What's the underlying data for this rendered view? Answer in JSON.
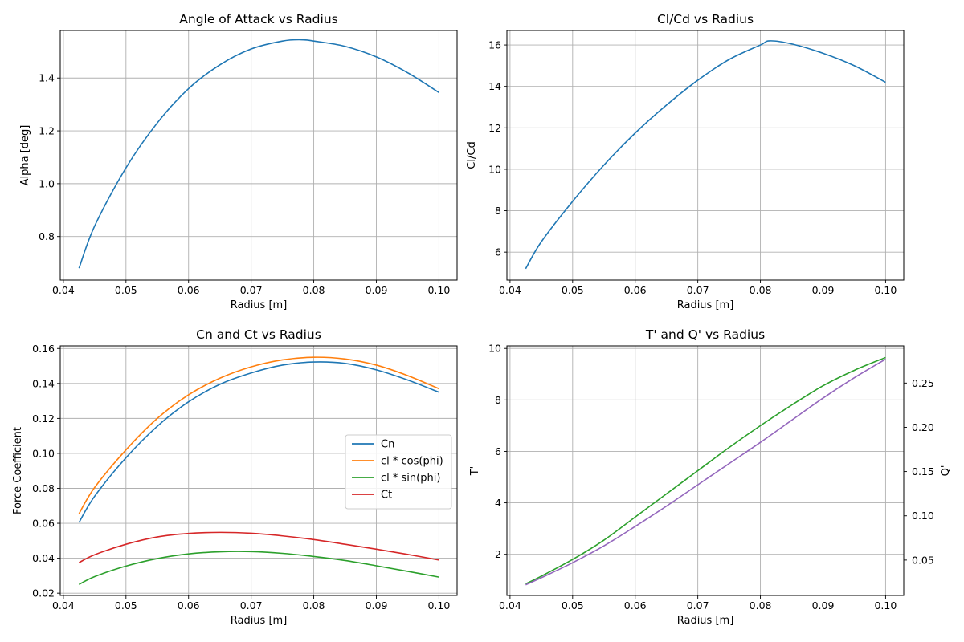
{
  "chart_data": [
    {
      "id": "alpha",
      "type": "line",
      "title": "Angle of Attack vs Radius",
      "xlabel": "Radius [m]",
      "ylabel": "Alpha [deg]",
      "xlim": [
        0.0395,
        0.1029
      ],
      "ylim": [
        0.635,
        1.58
      ],
      "xticks": [
        0.04,
        0.05,
        0.06,
        0.07,
        0.08,
        0.09,
        0.1
      ],
      "xtick_labels": [
        "0.04",
        "0.05",
        "0.06",
        "0.07",
        "0.08",
        "0.09",
        "0.10"
      ],
      "yticks": [
        0.8,
        1.0,
        1.2,
        1.4
      ],
      "ytick_labels": [
        "0.8",
        "1.0",
        "1.2",
        "1.4"
      ],
      "grid": true,
      "series": [
        {
          "color": "#1f77b4",
          "x": [
            0.0425,
            0.045,
            0.05,
            0.055,
            0.06,
            0.065,
            0.07,
            0.075,
            0.078,
            0.08,
            0.085,
            0.09,
            0.095,
            0.1
          ],
          "y": [
            0.68,
            0.84,
            1.06,
            1.23,
            1.36,
            1.45,
            1.51,
            1.54,
            1.545,
            1.54,
            1.52,
            1.48,
            1.42,
            1.345
          ]
        }
      ]
    },
    {
      "id": "clcd",
      "type": "line",
      "title": "Cl/Cd vs Radius",
      "xlabel": "Radius [m]",
      "ylabel": "Cl/Cd",
      "ylabel_color": "#1f77b4",
      "ytick_color": "#1f77b4",
      "xlim": [
        0.0395,
        0.1029
      ],
      "ylim": [
        4.65,
        16.7
      ],
      "xticks": [
        0.04,
        0.05,
        0.06,
        0.07,
        0.08,
        0.09,
        0.1
      ],
      "xtick_labels": [
        "0.04",
        "0.05",
        "0.06",
        "0.07",
        "0.08",
        "0.09",
        "0.10"
      ],
      "yticks": [
        6,
        8,
        10,
        12,
        14,
        16
      ],
      "ytick_labels": [
        "6",
        "8",
        "10",
        "12",
        "14",
        "16"
      ],
      "grid": true,
      "series": [
        {
          "color": "#1f77b4",
          "x": [
            0.0425,
            0.045,
            0.05,
            0.055,
            0.06,
            0.065,
            0.07,
            0.075,
            0.08,
            0.0815,
            0.085,
            0.09,
            0.095,
            0.1
          ],
          "y": [
            5.2,
            6.5,
            8.45,
            10.2,
            11.75,
            13.1,
            14.3,
            15.3,
            16.0,
            16.2,
            16.05,
            15.6,
            15.0,
            14.2
          ]
        }
      ]
    },
    {
      "id": "cnct",
      "type": "line",
      "title": "Cn and Ct vs Radius",
      "xlabel": "Radius [m]",
      "ylabel": "Force Coefficient",
      "xlim": [
        0.0395,
        0.1029
      ],
      "ylim": [
        0.0187,
        0.1615
      ],
      "xticks": [
        0.04,
        0.05,
        0.06,
        0.07,
        0.08,
        0.09,
        0.1
      ],
      "xtick_labels": [
        "0.04",
        "0.05",
        "0.06",
        "0.07",
        "0.08",
        "0.09",
        "0.10"
      ],
      "yticks": [
        0.02,
        0.04,
        0.06,
        0.08,
        0.1,
        0.12,
        0.14,
        0.16
      ],
      "ytick_labels": [
        "0.02",
        "0.04",
        "0.06",
        "0.08",
        "0.10",
        "0.12",
        "0.14",
        "0.16"
      ],
      "grid": true,
      "legend": "center-right",
      "series": [
        {
          "name": "Cn",
          "color": "#1f77b4",
          "x": [
            0.0425,
            0.045,
            0.05,
            0.055,
            0.06,
            0.065,
            0.07,
            0.075,
            0.08,
            0.085,
            0.09,
            0.095,
            0.1
          ],
          "y": [
            0.0605,
            0.0755,
            0.0975,
            0.1155,
            0.1295,
            0.1395,
            0.146,
            0.1505,
            0.1523,
            0.1515,
            0.1478,
            0.142,
            0.135
          ]
        },
        {
          "name": "cl * cos(phi)",
          "color": "#ff7f0e",
          "x": [
            0.0425,
            0.045,
            0.05,
            0.055,
            0.06,
            0.065,
            0.07,
            0.075,
            0.08,
            0.085,
            0.09,
            0.095,
            0.1
          ],
          "y": [
            0.0655,
            0.0805,
            0.102,
            0.12,
            0.1335,
            0.143,
            0.1495,
            0.1535,
            0.155,
            0.154,
            0.1505,
            0.1445,
            0.137
          ]
        },
        {
          "name": "cl * sin(phi)",
          "color": "#2ca02c",
          "x": [
            0.0425,
            0.045,
            0.05,
            0.055,
            0.06,
            0.065,
            0.07,
            0.075,
            0.08,
            0.085,
            0.09,
            0.095,
            0.1
          ],
          "y": [
            0.025,
            0.0295,
            0.0355,
            0.0398,
            0.0425,
            0.0437,
            0.0438,
            0.0428,
            0.041,
            0.0387,
            0.0357,
            0.0325,
            0.0292
          ]
        },
        {
          "name": "Ct",
          "color": "#d62728",
          "x": [
            0.0425,
            0.045,
            0.05,
            0.055,
            0.06,
            0.065,
            0.07,
            0.075,
            0.08,
            0.085,
            0.09,
            0.095,
            0.1
          ],
          "y": [
            0.0375,
            0.042,
            0.048,
            0.0522,
            0.0542,
            0.0548,
            0.0543,
            0.0528,
            0.0507,
            0.048,
            0.0452,
            0.0422,
            0.039
          ]
        }
      ]
    },
    {
      "id": "tq",
      "type": "line",
      "title": "T' and Q' vs Radius",
      "xlabel": "Radius [m]",
      "ylabel": "T'",
      "ylabel_color": "#2ca02c",
      "ytick_color": "#2ca02c",
      "ylabel_right": "Q'",
      "ylabel_right_color": "#9467bd",
      "ytick_right_color": "#9467bd",
      "xlim": [
        0.0395,
        0.1029
      ],
      "ylim": [
        0.4,
        10.1
      ],
      "ylim_right": [
        0.01,
        0.292
      ],
      "xticks": [
        0.04,
        0.05,
        0.06,
        0.07,
        0.08,
        0.09,
        0.1
      ],
      "xtick_labels": [
        "0.04",
        "0.05",
        "0.06",
        "0.07",
        "0.08",
        "0.09",
        "0.10"
      ],
      "yticks": [
        2,
        4,
        6,
        8,
        10
      ],
      "ytick_labels": [
        "2",
        "4",
        "6",
        "8",
        "10"
      ],
      "yticks_right": [
        0.05,
        0.1,
        0.15,
        0.2,
        0.25
      ],
      "ytick_right_labels": [
        "0.05",
        "0.10",
        "0.15",
        "0.20",
        "0.25"
      ],
      "grid": true,
      "series": [
        {
          "color": "#2ca02c",
          "axis": "left",
          "x": [
            0.0425,
            0.045,
            0.05,
            0.055,
            0.06,
            0.065,
            0.07,
            0.075,
            0.08,
            0.085,
            0.09,
            0.095,
            0.1
          ],
          "y": [
            0.85,
            1.15,
            1.8,
            2.55,
            3.45,
            4.35,
            5.25,
            6.15,
            7.0,
            7.8,
            8.55,
            9.15,
            9.65
          ]
        },
        {
          "color": "#9467bd",
          "axis": "right",
          "x": [
            0.0425,
            0.045,
            0.05,
            0.055,
            0.06,
            0.065,
            0.07,
            0.075,
            0.08,
            0.085,
            0.09,
            0.095,
            0.1
          ],
          "y": [
            0.022,
            0.03,
            0.047,
            0.066,
            0.088,
            0.111,
            0.135,
            0.159,
            0.183,
            0.208,
            0.233,
            0.256,
            0.277
          ]
        }
      ]
    }
  ]
}
